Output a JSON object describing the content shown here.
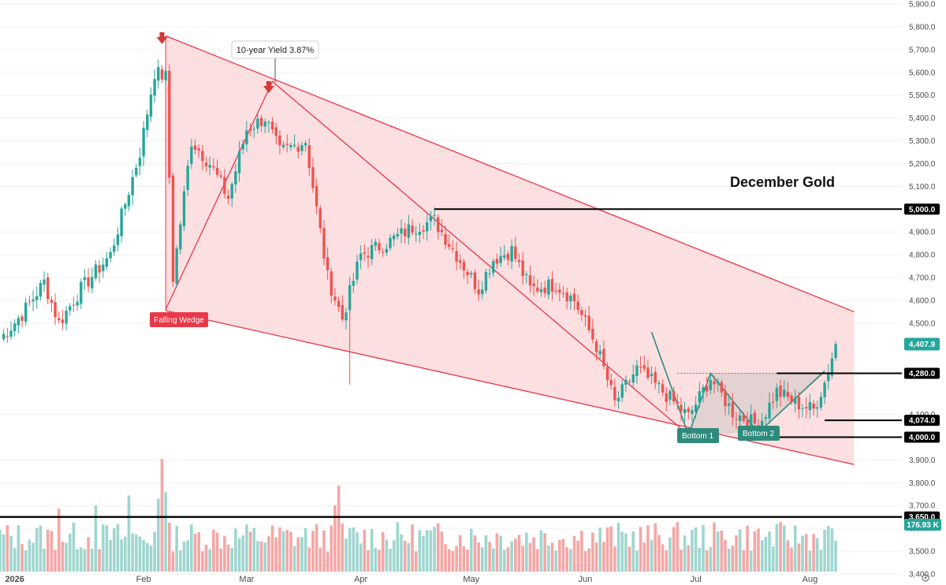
{
  "chart_data": {
    "type": "candlestick",
    "title": "December Gold",
    "yrange": [
      3350,
      5900
    ],
    "y_ticks": [
      {
        "v": 5900,
        "label": "5,900.0"
      },
      {
        "v": 5800,
        "label": "5,800.0"
      },
      {
        "v": 5700,
        "label": "5,700.0"
      },
      {
        "v": 5600,
        "label": "5,600.0"
      },
      {
        "v": 5500,
        "label": "5,500.0"
      },
      {
        "v": 5400,
        "label": "5,400.0"
      },
      {
        "v": 5300,
        "label": "5,300.0"
      },
      {
        "v": 5200,
        "label": "5,200.0"
      },
      {
        "v": 5100,
        "label": "5,100.0"
      },
      {
        "v": 4900,
        "label": "4,900.0"
      },
      {
        "v": 4800,
        "label": "4,800.0"
      },
      {
        "v": 4700,
        "label": "4,700.0"
      },
      {
        "v": 4600,
        "label": "4,600.0"
      },
      {
        "v": 4500,
        "label": "4,500.0"
      },
      {
        "v": 4100,
        "label": "4,100.0"
      },
      {
        "v": 3900,
        "label": "3,900.0"
      },
      {
        "v": 3800,
        "label": "3,800.0"
      },
      {
        "v": 3700,
        "label": "3,700.0"
      },
      {
        "v": 3600,
        "label": "3,600.0"
      },
      {
        "v": 3500,
        "label": "3,500.0"
      },
      {
        "v": 3400,
        "label": "3,400.0"
      }
    ],
    "x_ticks": [
      "2026",
      "Feb",
      "Mar",
      "Apr",
      "May",
      "Jun",
      "Jul",
      "Aug"
    ],
    "x_tick_days": [
      4,
      39,
      67,
      98,
      128,
      159,
      189,
      220
    ],
    "horizontal_levels": [
      {
        "value": 5000,
        "label": "5,000.0",
        "start_day": 118
      },
      {
        "value": 4280,
        "label": "4,280.0",
        "start_day": 211
      },
      {
        "value": 4074,
        "label": "4,074.0",
        "start_day": 224
      },
      {
        "value": 4000,
        "label": "4,000.0",
        "start_day": 209
      },
      {
        "value": 3650,
        "label": "3,650.0",
        "start_day": 0
      }
    ],
    "last_price": {
      "value": 4407.9,
      "label": "4,407.9"
    },
    "volume_badge": "176.93 K",
    "wedge_upper": [
      [
        45,
        5760
      ],
      [
        232,
        4550
      ]
    ],
    "wedge_lower": [
      [
        45,
        4555
      ],
      [
        232,
        3880
      ]
    ],
    "zigzag": [
      [
        45,
        4560
      ],
      [
        74,
        5560
      ],
      [
        187,
        4010
      ]
    ],
    "double_bottom": [
      [
        177,
        4460
      ],
      [
        187,
        4010
      ],
      [
        193,
        4280
      ],
      [
        206,
        4020
      ],
      [
        224,
        4290
      ]
    ],
    "neckline": {
      "value": 4280,
      "from_day": 184,
      "to_day": 224
    },
    "annotations": {
      "yield_callout": "10-year Yield 3.87%",
      "falling_wedge": "Falling Wedge",
      "bottom1": "Bottom 1",
      "bottom2": "Bottom 2"
    },
    "signal_arrows": [
      {
        "day": 44,
        "value": 5745
      },
      {
        "day": 73,
        "value": 5530
      }
    ],
    "colors": {
      "up": "#26a69a",
      "down": "#ef5350",
      "wedge_fill": "#fcd9dc",
      "wedge_line": "#e8384a",
      "pattern": "#2e8b7c",
      "level": "#000000"
    },
    "anchors": [
      [
        0,
        4430
      ],
      [
        6,
        4540
      ],
      [
        12,
        4680
      ],
      [
        16,
        4500
      ],
      [
        22,
        4650
      ],
      [
        30,
        4800
      ],
      [
        38,
        5250
      ],
      [
        42,
        5600
      ],
      [
        45,
        5580
      ],
      [
        47,
        4700
      ],
      [
        52,
        5300
      ],
      [
        57,
        5200
      ],
      [
        62,
        5050
      ],
      [
        67,
        5350
      ],
      [
        72,
        5400
      ],
      [
        76,
        5250
      ],
      [
        83,
        5300
      ],
      [
        89,
        4700
      ],
      [
        93,
        4520
      ],
      [
        98,
        4800
      ],
      [
        105,
        4850
      ],
      [
        112,
        4920
      ],
      [
        118,
        4950
      ],
      [
        124,
        4800
      ],
      [
        130,
        4650
      ],
      [
        134,
        4780
      ],
      [
        139,
        4820
      ],
      [
        144,
        4650
      ],
      [
        151,
        4670
      ],
      [
        156,
        4600
      ],
      [
        162,
        4400
      ],
      [
        167,
        4150
      ],
      [
        173,
        4300
      ],
      [
        180,
        4200
      ],
      [
        187,
        4090
      ],
      [
        193,
        4260
      ],
      [
        199,
        4110
      ],
      [
        206,
        4050
      ],
      [
        211,
        4200
      ],
      [
        216,
        4150
      ],
      [
        221,
        4120
      ],
      [
        224,
        4240
      ],
      [
        227,
        4407.9
      ]
    ]
  }
}
